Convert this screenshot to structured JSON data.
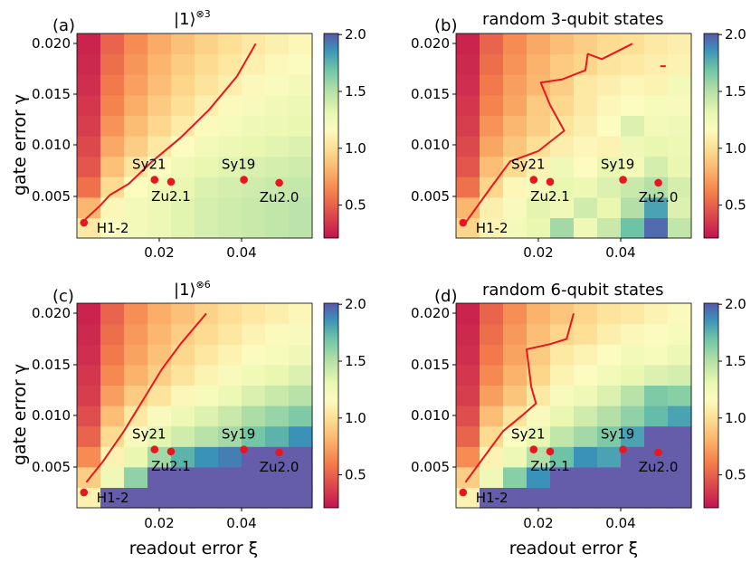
{
  "figure": {
    "xlabel": "readout error ξ",
    "ylabel": "gate error γ",
    "colorbar_ticks": [
      "0.5",
      "1.0",
      "1.5",
      "2.0"
    ],
    "x_ticks": [
      "0.02",
      "0.04"
    ],
    "y_ticks": [
      "0.005",
      "0.010",
      "0.015",
      "0.020"
    ],
    "colors": {
      "curve": "#e8171f",
      "device_marker": "#e8171f"
    }
  },
  "chart_data": [
    {
      "type": "heatmap",
      "panel": "(a)",
      "title": "|1⟩",
      "title_superscript": "⊗3",
      "colorbar_range": [
        0.2,
        2.0
      ],
      "xlim": [
        0.0025,
        0.0525
      ],
      "ylim": [
        0.001,
        0.021
      ],
      "grid": {
        "nx": 10,
        "ny": 10,
        "x_start": 0.0025,
        "dx": 0.005,
        "y_start": 0.001,
        "dy": 0.002
      },
      "values": [
        [
          1.05,
          1.15,
          1.22,
          1.28,
          1.33,
          1.37,
          1.4,
          1.42,
          1.45,
          1.47
        ],
        [
          0.82,
          1.12,
          1.22,
          1.28,
          1.33,
          1.37,
          1.4,
          1.42,
          1.45,
          1.47
        ],
        [
          0.55,
          0.98,
          1.15,
          1.24,
          1.3,
          1.35,
          1.38,
          1.4,
          1.42,
          1.44
        ],
        [
          0.45,
          0.86,
          1.03,
          1.15,
          1.24,
          1.3,
          1.33,
          1.36,
          1.38,
          1.4
        ],
        [
          0.4,
          0.76,
          0.92,
          1.05,
          1.15,
          1.22,
          1.27,
          1.3,
          1.33,
          1.35
        ],
        [
          0.36,
          0.68,
          0.84,
          0.96,
          1.06,
          1.14,
          1.2,
          1.25,
          1.28,
          1.3
        ],
        [
          0.33,
          0.62,
          0.78,
          0.9,
          1.0,
          1.08,
          1.14,
          1.19,
          1.23,
          1.26
        ],
        [
          0.3,
          0.58,
          0.73,
          0.85,
          0.95,
          1.02,
          1.08,
          1.13,
          1.17,
          1.21
        ],
        [
          0.28,
          0.54,
          0.69,
          0.81,
          0.91,
          0.98,
          1.04,
          1.09,
          1.13,
          1.16
        ],
        [
          0.26,
          0.5,
          0.65,
          0.77,
          0.86,
          0.94,
          1.0,
          1.05,
          1.09,
          1.12
        ]
      ],
      "curve": {
        "x": [
          0.0035,
          0.0075,
          0.0095,
          0.0135,
          0.0185,
          0.0245,
          0.0305,
          0.0365,
          0.0405
        ],
        "y": [
          0.0025,
          0.0042,
          0.0052,
          0.0063,
          0.0085,
          0.0108,
          0.0135,
          0.0168,
          0.02
        ]
      },
      "devices": [
        {
          "name": "H1-2",
          "x": 0.004,
          "y": 0.0025
        },
        {
          "name": "Sy21",
          "x": 0.019,
          "y": 0.0067
        },
        {
          "name": "Zu2.1",
          "x": 0.0225,
          "y": 0.0065
        },
        {
          "name": "Sy19",
          "x": 0.038,
          "y": 0.0067
        },
        {
          "name": "Zu2.0",
          "x": 0.0455,
          "y": 0.0064
        }
      ]
    },
    {
      "type": "heatmap",
      "panel": "(b)",
      "title": "random 3-qubit states",
      "title_superscript": "",
      "colorbar_range": [
        0.2,
        2.0
      ],
      "xlim": [
        0.0025,
        0.0525
      ],
      "ylim": [
        0.001,
        0.021
      ],
      "grid": {
        "nx": 10,
        "ny": 10,
        "x_start": 0.0025,
        "dx": 0.005,
        "y_start": 0.001,
        "dy": 0.002
      },
      "values": [
        [
          0.95,
          1.1,
          1.22,
          1.3,
          1.55,
          1.25,
          1.42,
          1.7,
          1.95,
          1.45
        ],
        [
          0.82,
          1.08,
          1.18,
          1.32,
          1.25,
          1.4,
          1.3,
          1.5,
          1.8,
          1.35
        ],
        [
          0.55,
          0.95,
          1.12,
          1.2,
          1.3,
          1.28,
          1.35,
          1.42,
          1.5,
          1.38
        ],
        [
          0.45,
          0.85,
          0.98,
          1.1,
          1.25,
          1.15,
          1.3,
          1.22,
          1.38,
          1.3
        ],
        [
          0.4,
          0.75,
          0.88,
          1.0,
          1.08,
          1.12,
          1.1,
          1.25,
          1.3,
          1.28
        ],
        [
          0.36,
          0.68,
          0.82,
          0.92,
          1.02,
          1.08,
          1.15,
          1.35,
          1.22,
          1.25
        ],
        [
          0.33,
          0.62,
          0.75,
          0.9,
          0.96,
          1.05,
          1.12,
          1.15,
          1.2,
          1.18
        ],
        [
          0.3,
          0.58,
          0.72,
          0.82,
          0.92,
          1.05,
          1.08,
          1.12,
          1.1,
          1.22
        ],
        [
          0.28,
          0.54,
          0.68,
          0.8,
          0.9,
          0.95,
          1.02,
          1.05,
          1.08,
          1.1
        ],
        [
          0.26,
          0.5,
          0.65,
          0.76,
          0.85,
          0.92,
          0.98,
          1.0,
          1.05,
          1.08
        ]
      ],
      "curve": {
        "x": [
          0.0045,
          0.01,
          0.014,
          0.02,
          0.0255,
          0.0225,
          0.0205,
          0.025,
          0.03,
          0.0305,
          0.0335,
          0.04
        ],
        "y": [
          0.0025,
          0.006,
          0.0085,
          0.0095,
          0.0115,
          0.014,
          0.0162,
          0.0165,
          0.0174,
          0.019,
          0.0185,
          0.02
        ]
      },
      "extra_marker": {
        "x": 0.0465,
        "y": 0.0178
      },
      "devices": [
        {
          "name": "H1-2",
          "x": 0.004,
          "y": 0.0025
        },
        {
          "name": "Sy21",
          "x": 0.019,
          "y": 0.0067
        },
        {
          "name": "Zu2.1",
          "x": 0.0225,
          "y": 0.0065
        },
        {
          "name": "Sy19",
          "x": 0.038,
          "y": 0.0067
        },
        {
          "name": "Zu2.0",
          "x": 0.0455,
          "y": 0.0064
        }
      ]
    },
    {
      "type": "heatmap",
      "panel": "(c)",
      "title": "|1⟩",
      "title_superscript": "⊗6",
      "colorbar_range": [
        0.2,
        2.0
      ],
      "xlim": [
        0.0025,
        0.0525
      ],
      "ylim": [
        0.001,
        0.021
      ],
      "grid": {
        "nx": 10,
        "ny": 10,
        "x_start": 0.0025,
        "dx": 0.005,
        "y_start": 0.001,
        "dy": 0.002
      },
      "values": [
        [
          1.1,
          2.5,
          2.5,
          2.5,
          2.5,
          2.5,
          2.5,
          2.5,
          2.5,
          2.5
        ],
        [
          0.92,
          1.25,
          1.6,
          2.0,
          2.2,
          2.4,
          2.5,
          2.5,
          2.5,
          2.5
        ],
        [
          0.65,
          1.1,
          1.3,
          1.55,
          1.75,
          1.85,
          1.9,
          2.2,
          2.3,
          2.5
        ],
        [
          0.5,
          0.98,
          1.18,
          1.32,
          1.4,
          1.48,
          1.55,
          1.68,
          1.75,
          1.85
        ],
        [
          0.42,
          0.85,
          1.05,
          1.18,
          1.26,
          1.34,
          1.42,
          1.52,
          1.58,
          1.65
        ],
        [
          0.36,
          0.72,
          0.9,
          1.02,
          1.12,
          1.2,
          1.28,
          1.36,
          1.42,
          1.48
        ],
        [
          0.33,
          0.64,
          0.8,
          0.92,
          1.02,
          1.1,
          1.18,
          1.24,
          1.3,
          1.35
        ],
        [
          0.3,
          0.58,
          0.74,
          0.86,
          0.96,
          1.04,
          1.1,
          1.16,
          1.2,
          1.25
        ],
        [
          0.28,
          0.54,
          0.7,
          0.82,
          0.92,
          0.98,
          1.04,
          1.1,
          1.14,
          1.18
        ],
        [
          0.26,
          0.5,
          0.66,
          0.78,
          0.86,
          0.94,
          1.0,
          1.04,
          1.08,
          1.12
        ]
      ],
      "curve": {
        "x": [
          0.0045,
          0.008,
          0.0125,
          0.0165,
          0.0205,
          0.0245,
          0.03
        ],
        "y": [
          0.0035,
          0.0055,
          0.0085,
          0.0115,
          0.0145,
          0.017,
          0.02
        ]
      },
      "devices": [
        {
          "name": "H1-2",
          "x": 0.004,
          "y": 0.0025
        },
        {
          "name": "Sy21",
          "x": 0.019,
          "y": 0.0067
        },
        {
          "name": "Zu2.1",
          "x": 0.0225,
          "y": 0.0065
        },
        {
          "name": "Sy19",
          "x": 0.038,
          "y": 0.0067
        },
        {
          "name": "Zu2.0",
          "x": 0.0455,
          "y": 0.0064
        }
      ]
    },
    {
      "type": "heatmap",
      "panel": "(d)",
      "title": "random 6-qubit states",
      "title_superscript": "",
      "colorbar_range": [
        0.2,
        2.0
      ],
      "xlim": [
        0.0025,
        0.0525
      ],
      "ylim": [
        0.001,
        0.021
      ],
      "grid": {
        "nx": 10,
        "ny": 10,
        "x_start": 0.0025,
        "dx": 0.005,
        "y_start": 0.001,
        "dy": 0.002
      },
      "values": [
        [
          1.1,
          2.5,
          2.5,
          2.5,
          2.5,
          2.5,
          2.5,
          2.5,
          2.5,
          2.5
        ],
        [
          0.92,
          1.25,
          1.62,
          1.85,
          2.1,
          2.3,
          2.45,
          2.5,
          2.5,
          2.5
        ],
        [
          0.65,
          1.1,
          1.28,
          1.5,
          1.7,
          1.85,
          1.8,
          2.1,
          2.2,
          2.5
        ],
        [
          0.5,
          0.98,
          1.15,
          1.3,
          1.45,
          1.55,
          1.65,
          1.8,
          2.0,
          2.2
        ],
        [
          0.42,
          0.85,
          1.02,
          1.18,
          1.3,
          1.4,
          1.5,
          1.6,
          1.72,
          1.8
        ],
        [
          0.36,
          0.72,
          0.88,
          1.05,
          1.18,
          1.25,
          1.35,
          1.48,
          1.65,
          1.62
        ],
        [
          0.33,
          0.64,
          0.8,
          0.95,
          1.1,
          1.15,
          1.22,
          1.3,
          1.35,
          1.38
        ],
        [
          0.3,
          0.58,
          0.74,
          0.9,
          1.05,
          1.1,
          1.15,
          1.22,
          1.2,
          1.28
        ],
        [
          0.28,
          0.54,
          0.7,
          0.85,
          0.95,
          1.0,
          1.08,
          1.12,
          1.16,
          1.2
        ],
        [
          0.26,
          0.5,
          0.66,
          0.8,
          0.88,
          0.95,
          1.02,
          1.05,
          1.1,
          1.14
        ]
      ],
      "curve": {
        "x": [
          0.0045,
          0.0085,
          0.0125,
          0.0165,
          0.0195,
          0.0185,
          0.0175,
          0.0225,
          0.026,
          0.0275
        ],
        "y": [
          0.0035,
          0.006,
          0.0085,
          0.01,
          0.0112,
          0.0128,
          0.0165,
          0.017,
          0.0175,
          0.02
        ]
      },
      "devices": [
        {
          "name": "H1-2",
          "x": 0.004,
          "y": 0.0025
        },
        {
          "name": "Sy21",
          "x": 0.019,
          "y": 0.0067
        },
        {
          "name": "Zu2.1",
          "x": 0.0225,
          "y": 0.0065
        },
        {
          "name": "Sy19",
          "x": 0.038,
          "y": 0.0067
        },
        {
          "name": "Zu2.0",
          "x": 0.0455,
          "y": 0.0064
        }
      ]
    }
  ]
}
